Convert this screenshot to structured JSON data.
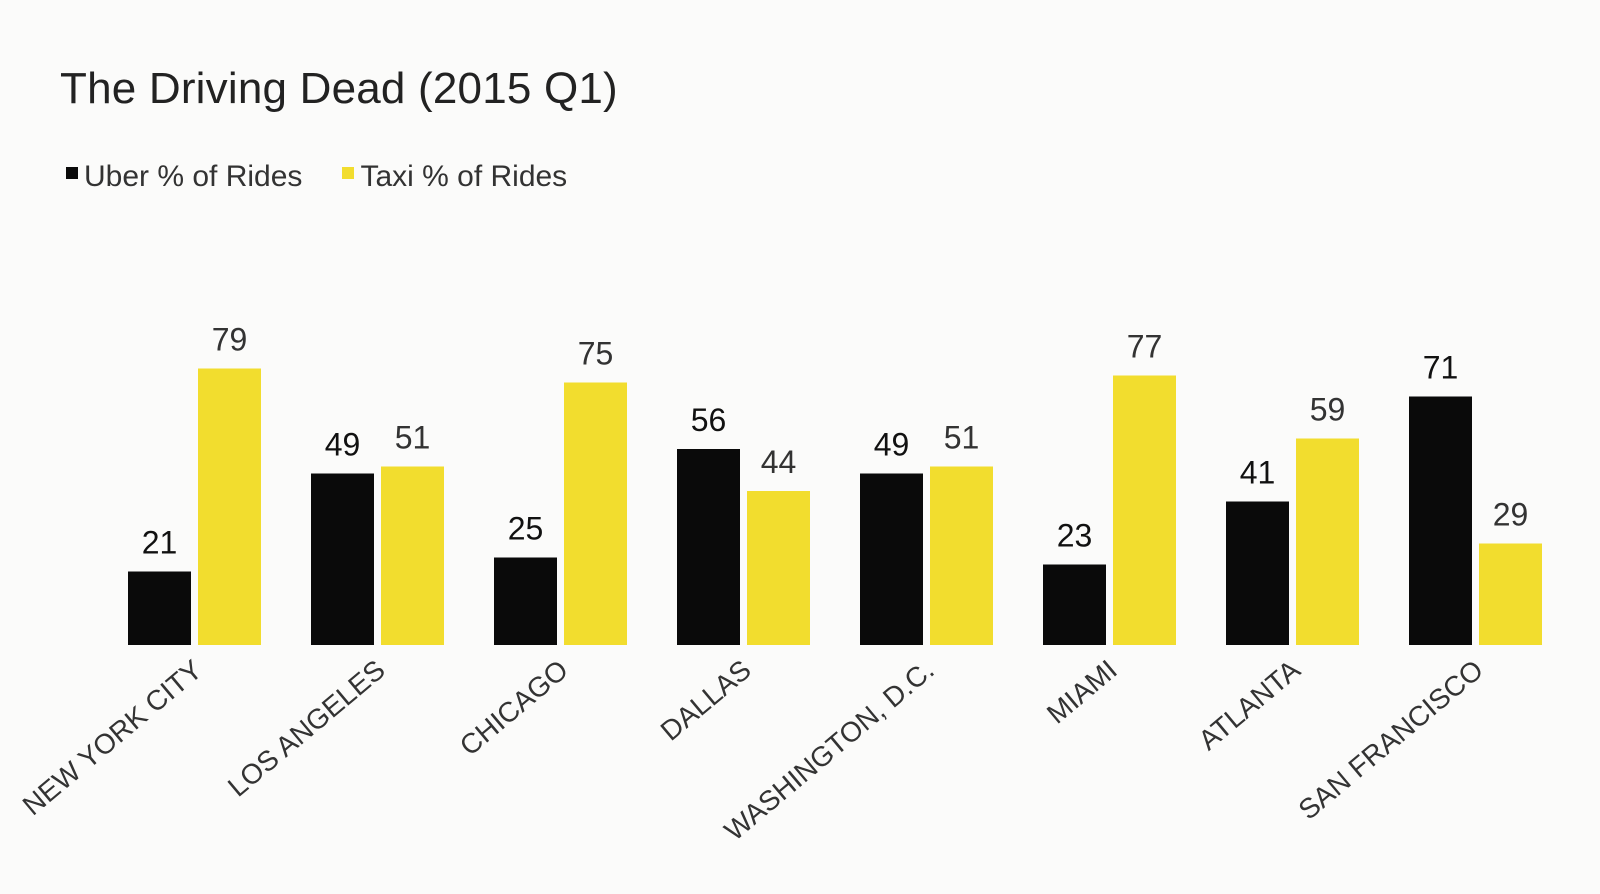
{
  "chart_data": {
    "type": "bar",
    "title": "The Driving Dead (2015 Q1)",
    "categories": [
      "NEW YORK CITY",
      "LOS ANGELES",
      "CHICAGO",
      "DALLAS",
      "WASHINGTON, D.C.",
      "MIAMI",
      "ATLANTA",
      "SAN FRANCISCO"
    ],
    "series": [
      {
        "name": "Uber % of Rides",
        "color": "#0a0a0a",
        "values": [
          21,
          49,
          25,
          56,
          49,
          23,
          41,
          71
        ]
      },
      {
        "name": "Taxi % of Rides",
        "color": "#f2dd2e",
        "values": [
          79,
          51,
          75,
          44,
          51,
          77,
          59,
          29
        ]
      }
    ],
    "ylim": [
      0,
      100
    ],
    "grid": false,
    "legend_position": "top-left",
    "xlabel": "",
    "ylabel": ""
  }
}
